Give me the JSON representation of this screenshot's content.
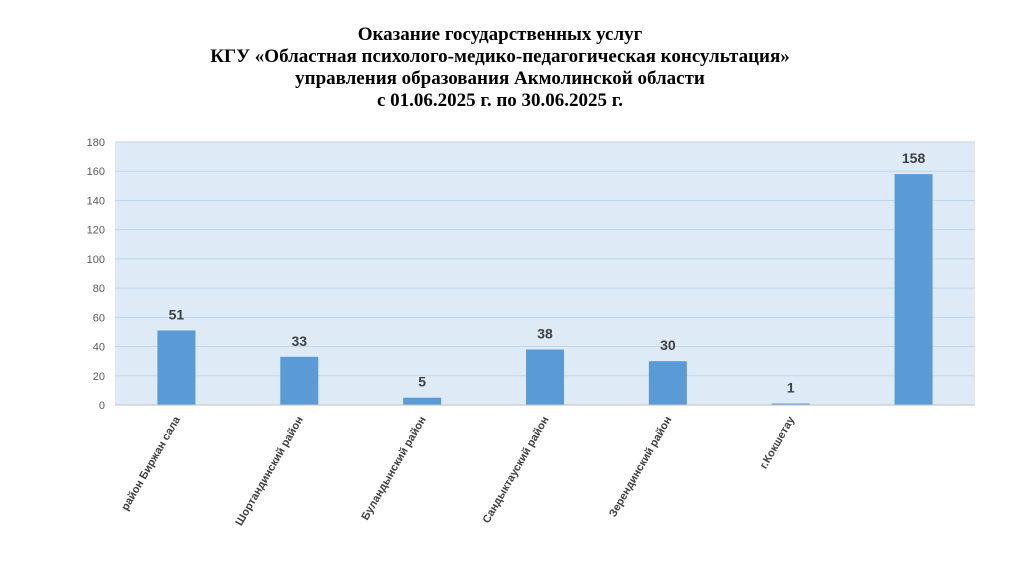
{
  "chart_data": {
    "type": "bar",
    "title_lines": [
      "Оказание государственных услуг",
      "КГУ «Областная психолого-медико-педагогическая консультация»",
      "управления образования Акмолинской области",
      "с 01.06.2025 г. по 30.06.2025 г."
    ],
    "categories": [
      "район Биржан сала",
      "Шортандинский район",
      "Буландынский район",
      "Сандыктауский район",
      "Зерендинский район",
      "г.Кокшетау",
      ""
    ],
    "values": [
      51,
      33,
      5,
      38,
      30,
      1,
      158
    ],
    "ylim": [
      0,
      180
    ],
    "yticks": [
      0,
      20,
      40,
      60,
      80,
      100,
      120,
      140,
      160,
      180
    ],
    "grid": true,
    "legend": "none",
    "colors": {
      "bar": "#5B9BD5",
      "plot_background": "#DEEBF7",
      "grid": "#BDD7EE"
    }
  }
}
